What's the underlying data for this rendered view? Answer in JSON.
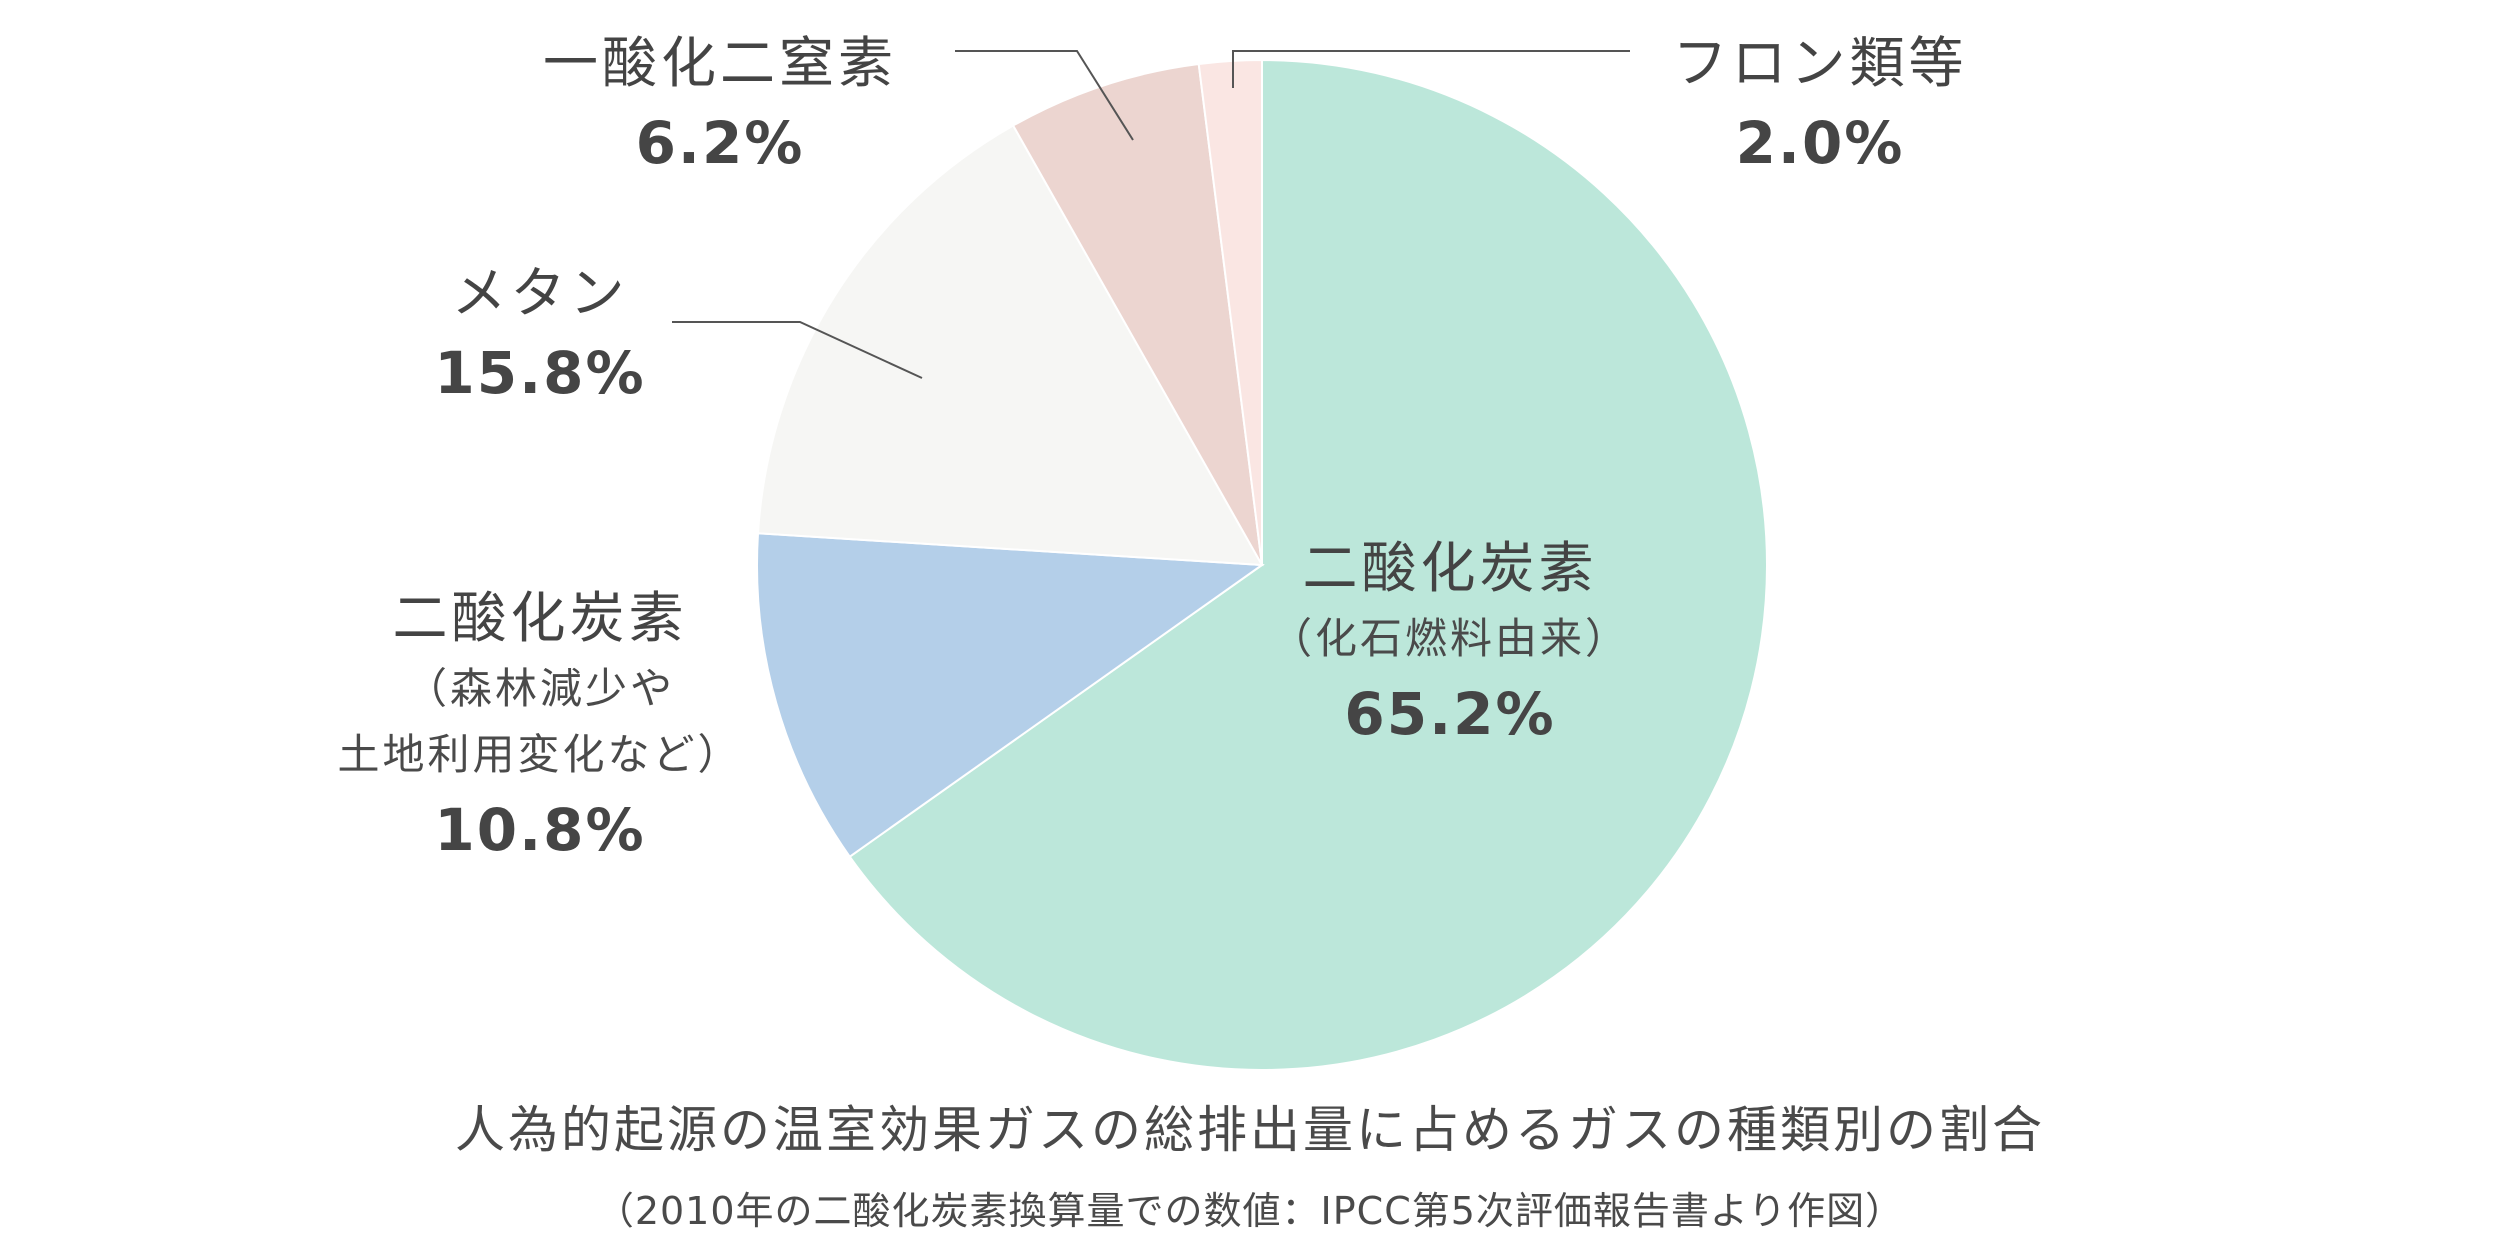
{
  "chart_data": {
    "type": "pie",
    "title": "人為的起源の温室効果ガスの総排出量に占めるガスの種類別の割合",
    "subtitle": "（2010年の二酸化炭素換算量での数値：IPCC第5次評価報告書より作図）",
    "slices": [
      {
        "name": "二酸化炭素",
        "note": "（化石燃料由来）",
        "value": 65.2,
        "label": "65.2%",
        "color": "#bce7da"
      },
      {
        "name": "二酸化炭素",
        "note": "（森林減少や",
        "note2": "土地利用変化など）",
        "value": 10.8,
        "label": "10.8%",
        "color": "#b4cfe9"
      },
      {
        "name": "メタン",
        "value": 15.8,
        "label": "15.8%",
        "color": "#f6f6f4"
      },
      {
        "name": "一酸化二窒素",
        "value": 6.2,
        "label": "6.2%",
        "color": "#ecd5d0"
      },
      {
        "name": "フロン類等",
        "value": 2.0,
        "label": "2.0%",
        "color": "#fae6e3"
      }
    ]
  }
}
